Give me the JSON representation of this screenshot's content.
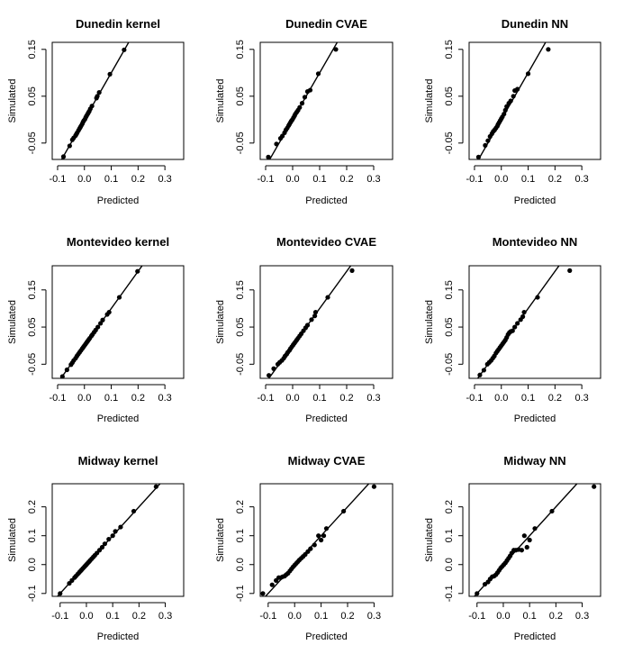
{
  "chart_data": [
    {
      "type": "scatter",
      "title": "Dunedin kernel",
      "xlabel": "Predicted",
      "ylabel": "Simulated",
      "xlim": [
        -0.12,
        0.37
      ],
      "ylim": [
        -0.085,
        0.165
      ],
      "xticks": [
        "-0.1",
        "0.0",
        "0.1",
        "0.2",
        "0.3"
      ],
      "yticks": [
        "-0.05",
        "0.05",
        "0.15"
      ],
      "line": {
        "x": [
          -0.1,
          0.2
        ],
        "y": [
          -0.1,
          0.2
        ]
      },
      "x": [
        -0.078,
        -0.055,
        -0.045,
        -0.04,
        -0.033,
        -0.03,
        -0.027,
        -0.022,
        -0.018,
        -0.015,
        -0.012,
        -0.008,
        -0.005,
        -0.002,
        0.002,
        0.005,
        0.008,
        0.012,
        0.015,
        0.018,
        0.022,
        0.028,
        0.045,
        0.048,
        0.055,
        0.095,
        0.148
      ],
      "y": [
        -0.079,
        -0.056,
        -0.043,
        -0.039,
        -0.034,
        -0.031,
        -0.028,
        -0.023,
        -0.019,
        -0.016,
        -0.013,
        -0.009,
        -0.005,
        -0.002,
        0.001,
        0.005,
        0.008,
        0.012,
        0.015,
        0.018,
        0.023,
        0.029,
        0.046,
        0.05,
        0.058,
        0.097,
        0.149
      ]
    },
    {
      "type": "scatter",
      "title": "Dunedin CVAE",
      "xlabel": "Predicted",
      "ylabel": "Simulated",
      "xlim": [
        -0.12,
        0.37
      ],
      "ylim": [
        -0.085,
        0.165
      ],
      "xticks": [
        "-0.1",
        "0.0",
        "0.1",
        "0.2",
        "0.3"
      ],
      "yticks": [
        "-0.05",
        "0.05",
        "0.15"
      ],
      "line": {
        "x": [
          -0.1,
          0.2
        ],
        "y": [
          -0.1,
          0.2
        ]
      },
      "x": [
        -0.09,
        -0.06,
        -0.045,
        -0.038,
        -0.03,
        -0.025,
        -0.02,
        -0.015,
        -0.012,
        -0.008,
        -0.005,
        -0.001,
        0.003,
        0.007,
        0.01,
        0.015,
        0.02,
        0.026,
        0.035,
        0.045,
        0.055,
        0.065,
        0.095,
        0.16
      ],
      "y": [
        -0.08,
        -0.052,
        -0.04,
        -0.035,
        -0.028,
        -0.022,
        -0.018,
        -0.013,
        -0.01,
        -0.006,
        -0.003,
        0.0,
        0.004,
        0.008,
        0.012,
        0.016,
        0.02,
        0.026,
        0.035,
        0.048,
        0.06,
        0.063,
        0.098,
        0.15
      ]
    },
    {
      "type": "scatter",
      "title": "Dunedin NN",
      "xlabel": "Predicted",
      "ylabel": "Simulated",
      "xlim": [
        -0.12,
        0.37
      ],
      "ylim": [
        -0.085,
        0.165
      ],
      "xticks": [
        "-0.1",
        "0.0",
        "0.1",
        "0.2",
        "0.3"
      ],
      "yticks": [
        "-0.05",
        "0.05",
        "0.15"
      ],
      "line": {
        "x": [
          -0.1,
          0.2
        ],
        "y": [
          -0.1,
          0.2
        ]
      },
      "x": [
        -0.085,
        -0.06,
        -0.05,
        -0.042,
        -0.035,
        -0.03,
        -0.025,
        -0.02,
        -0.015,
        -0.012,
        -0.008,
        -0.004,
        0.0,
        0.004,
        0.01,
        0.015,
        0.02,
        0.028,
        0.035,
        0.045,
        0.05,
        0.06,
        0.1,
        0.175
      ],
      "y": [
        -0.08,
        -0.055,
        -0.045,
        -0.036,
        -0.03,
        -0.025,
        -0.022,
        -0.018,
        -0.014,
        -0.01,
        -0.006,
        -0.002,
        0.002,
        0.006,
        0.012,
        0.02,
        0.028,
        0.035,
        0.04,
        0.05,
        0.062,
        0.065,
        0.098,
        0.15
      ]
    },
    {
      "type": "scatter",
      "title": "Montevideo kernel",
      "xlabel": "Predicted",
      "ylabel": "Simulated",
      "xlim": [
        -0.12,
        0.37
      ],
      "ylim": [
        -0.088,
        0.215
      ],
      "xticks": [
        "-0.1",
        "0.0",
        "0.1",
        "0.2",
        "0.3"
      ],
      "yticks": [
        "-0.05",
        "0.05",
        "0.15"
      ],
      "line": {
        "x": [
          -0.1,
          0.25
        ],
        "y": [
          -0.1,
          0.25
        ]
      },
      "x": [
        -0.082,
        -0.065,
        -0.05,
        -0.045,
        -0.04,
        -0.033,
        -0.028,
        -0.023,
        -0.018,
        -0.013,
        -0.008,
        -0.004,
        0.0,
        0.004,
        0.008,
        0.012,
        0.016,
        0.02,
        0.026,
        0.03,
        0.036,
        0.042,
        0.05,
        0.06,
        0.068,
        0.085,
        0.092,
        0.13,
        0.198
      ],
      "y": [
        -0.083,
        -0.065,
        -0.051,
        -0.046,
        -0.04,
        -0.034,
        -0.028,
        -0.023,
        -0.018,
        -0.013,
        -0.008,
        -0.004,
        0.0,
        0.004,
        0.008,
        0.012,
        0.016,
        0.02,
        0.026,
        0.03,
        0.036,
        0.042,
        0.05,
        0.06,
        0.069,
        0.084,
        0.09,
        0.13,
        0.2
      ]
    },
    {
      "type": "scatter",
      "title": "Montevideo CVAE",
      "xlabel": "Predicted",
      "ylabel": "Simulated",
      "xlim": [
        -0.12,
        0.37
      ],
      "ylim": [
        -0.088,
        0.215
      ],
      "xticks": [
        "-0.1",
        "0.0",
        "0.1",
        "0.2",
        "0.3"
      ],
      "yticks": [
        "-0.05",
        "0.05",
        "0.15"
      ],
      "line": {
        "x": [
          -0.1,
          0.25
        ],
        "y": [
          -0.1,
          0.25
        ]
      },
      "x": [
        -0.088,
        -0.07,
        -0.055,
        -0.048,
        -0.04,
        -0.033,
        -0.028,
        -0.022,
        -0.018,
        -0.012,
        -0.008,
        -0.003,
        0.002,
        0.006,
        0.01,
        0.015,
        0.02,
        0.026,
        0.032,
        0.04,
        0.048,
        0.055,
        0.07,
        0.082,
        0.085,
        0.13,
        0.22
      ],
      "y": [
        -0.08,
        -0.062,
        -0.05,
        -0.045,
        -0.04,
        -0.034,
        -0.028,
        -0.023,
        -0.018,
        -0.013,
        -0.008,
        -0.003,
        0.002,
        0.006,
        0.01,
        0.015,
        0.02,
        0.026,
        0.032,
        0.04,
        0.048,
        0.055,
        0.07,
        0.08,
        0.09,
        0.13,
        0.202
      ]
    },
    {
      "type": "scatter",
      "title": "Montevideo NN",
      "xlabel": "Predicted",
      "ylabel": "Simulated",
      "xlim": [
        -0.12,
        0.37
      ],
      "ylim": [
        -0.088,
        0.215
      ],
      "xticks": [
        "-0.1",
        "0.0",
        "0.1",
        "0.2",
        "0.3"
      ],
      "yticks": [
        "-0.05",
        "0.05",
        "0.15"
      ],
      "line": {
        "x": [
          -0.1,
          0.25
        ],
        "y": [
          -0.1,
          0.25
        ]
      },
      "x": [
        -0.08,
        -0.065,
        -0.052,
        -0.045,
        -0.038,
        -0.032,
        -0.026,
        -0.02,
        -0.015,
        -0.01,
        -0.005,
        0.0,
        0.005,
        0.01,
        0.015,
        0.02,
        0.025,
        0.03,
        0.035,
        0.042,
        0.05,
        0.06,
        0.072,
        0.08,
        0.085,
        0.135,
        0.255
      ],
      "y": [
        -0.079,
        -0.066,
        -0.05,
        -0.045,
        -0.04,
        -0.034,
        -0.028,
        -0.02,
        -0.015,
        -0.01,
        -0.005,
        0.0,
        0.005,
        0.01,
        0.015,
        0.022,
        0.03,
        0.035,
        0.038,
        0.04,
        0.05,
        0.06,
        0.07,
        0.078,
        0.09,
        0.13,
        0.202
      ]
    },
    {
      "type": "scatter",
      "title": "Midway kernel",
      "xlabel": "Predicted",
      "ylabel": "Simulated",
      "xlim": [
        -0.13,
        0.37
      ],
      "ylim": [
        -0.11,
        0.28
      ],
      "xticks": [
        "-0.1",
        "0.0",
        "0.1",
        "0.2",
        "0.3"
      ],
      "yticks": [
        "-0.1",
        "0.0",
        "0.1",
        "0.2"
      ],
      "line": {
        "x": [
          -0.12,
          0.3
        ],
        "y": [
          -0.12,
          0.3
        ]
      },
      "x": [
        -0.1,
        -0.065,
        -0.055,
        -0.045,
        -0.04,
        -0.033,
        -0.027,
        -0.022,
        -0.018,
        -0.013,
        -0.008,
        -0.004,
        0.0,
        0.004,
        0.009,
        0.014,
        0.02,
        0.026,
        0.032,
        0.04,
        0.05,
        0.06,
        0.07,
        0.085,
        0.1,
        0.11,
        0.13,
        0.18,
        0.265
      ],
      "y": [
        -0.1,
        -0.065,
        -0.055,
        -0.045,
        -0.04,
        -0.033,
        -0.027,
        -0.022,
        -0.018,
        -0.013,
        -0.008,
        -0.004,
        0.0,
        0.004,
        0.009,
        0.014,
        0.02,
        0.026,
        0.032,
        0.04,
        0.05,
        0.06,
        0.072,
        0.088,
        0.1,
        0.115,
        0.13,
        0.185,
        0.27
      ]
    },
    {
      "type": "scatter",
      "title": "Midway CVAE",
      "xlabel": "Predicted",
      "ylabel": "Simulated",
      "xlim": [
        -0.13,
        0.37
      ],
      "ylim": [
        -0.11,
        0.28
      ],
      "xticks": [
        "-0.1",
        "0.0",
        "0.1",
        "0.2",
        "0.3"
      ],
      "yticks": [
        "-0.1",
        "0.0",
        "0.1",
        "0.2"
      ],
      "line": {
        "x": [
          -0.12,
          0.3
        ],
        "y": [
          -0.12,
          0.3
        ]
      },
      "x": [
        -0.12,
        -0.085,
        -0.07,
        -0.06,
        -0.052,
        -0.045,
        -0.038,
        -0.032,
        -0.025,
        -0.018,
        -0.012,
        -0.006,
        0.0,
        0.006,
        0.012,
        0.018,
        0.025,
        0.032,
        0.04,
        0.05,
        0.06,
        0.075,
        0.09,
        0.1,
        0.11,
        0.12,
        0.185,
        0.3
      ],
      "y": [
        -0.1,
        -0.07,
        -0.055,
        -0.045,
        -0.045,
        -0.042,
        -0.04,
        -0.035,
        -0.03,
        -0.022,
        -0.015,
        -0.008,
        -0.002,
        0.004,
        0.01,
        0.016,
        0.022,
        0.028,
        0.035,
        0.045,
        0.055,
        0.068,
        0.1,
        0.085,
        0.1,
        0.125,
        0.185,
        0.27
      ]
    },
    {
      "type": "scatter",
      "title": "Midway NN",
      "xlabel": "Predicted",
      "ylabel": "Simulated",
      "xlim": [
        -0.13,
        0.37
      ],
      "ylim": [
        -0.11,
        0.28
      ],
      "xticks": [
        "-0.1",
        "0.0",
        "0.1",
        "0.2",
        "0.3"
      ],
      "yticks": [
        "-0.1",
        "0.0",
        "0.1",
        "0.2"
      ],
      "line": {
        "x": [
          -0.12,
          0.3
        ],
        "y": [
          -0.12,
          0.3
        ]
      },
      "x": [
        -0.1,
        -0.07,
        -0.058,
        -0.05,
        -0.042,
        -0.035,
        -0.028,
        -0.022,
        -0.016,
        -0.01,
        -0.004,
        0.002,
        0.008,
        0.014,
        0.02,
        0.026,
        0.032,
        0.04,
        0.048,
        0.058,
        0.07,
        0.08,
        0.09,
        0.1,
        0.12,
        0.185,
        0.345
      ],
      "y": [
        -0.1,
        -0.068,
        -0.06,
        -0.05,
        -0.042,
        -0.04,
        -0.035,
        -0.028,
        -0.02,
        -0.012,
        -0.006,
        0.0,
        0.006,
        0.014,
        0.022,
        0.03,
        0.04,
        0.05,
        0.05,
        0.052,
        0.05,
        0.1,
        0.06,
        0.085,
        0.125,
        0.185,
        0.27
      ]
    }
  ]
}
